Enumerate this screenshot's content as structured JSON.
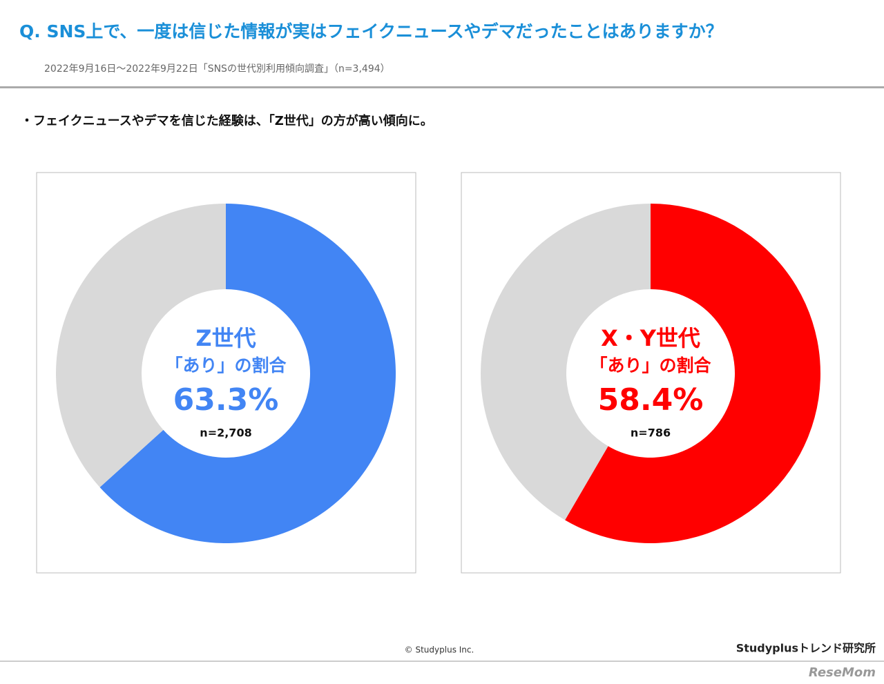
{
  "header": {
    "title": "Q. SNS上で、一度は信じた情報が実はフェイクニュースやデマだったことはありますか？",
    "subtitle": "2022年9月16日～2022年9月22日「SNSの世代別利用傾向調査」（n=3,494）"
  },
  "note": "・フェイクニュースやデマを信じた経験は、「Z世代」の方が高い傾向に。",
  "chart_data": [
    {
      "type": "donut",
      "title": "Z世代",
      "subtitle": "「あり」の割合",
      "annotation": "n=2,708",
      "values": [
        63.3,
        36.7
      ],
      "value_labels": [
        "63.3%",
        null
      ],
      "colors": [
        "#4285f4",
        "#d9d9d9"
      ]
    },
    {
      "type": "donut",
      "title": "X・Y世代",
      "subtitle": "「あり」の割合",
      "annotation": "n=786",
      "values": [
        58.4,
        41.6
      ],
      "value_labels": [
        "58.4%",
        null
      ],
      "colors": [
        "#ff0000",
        "#d9d9d9"
      ]
    }
  ],
  "footer": {
    "copyright": "© Studyplus Inc.",
    "brand": "Studyplusトレンド研究所",
    "watermark": "ReseMom"
  }
}
